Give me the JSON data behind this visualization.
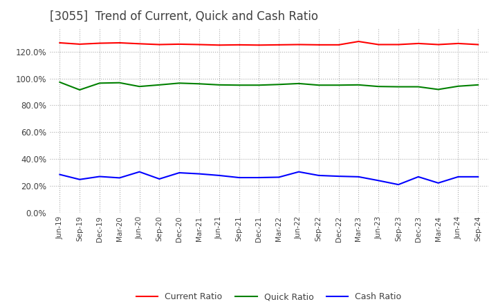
{
  "title": "[3055]  Trend of Current, Quick and Cash Ratio",
  "title_fontsize": 12,
  "title_color": "#404040",
  "background_color": "#ffffff",
  "plot_background_color": "#ffffff",
  "grid_color": "#aaaaaa",
  "x_labels": [
    "Jun-19",
    "Sep-19",
    "Dec-19",
    "Mar-20",
    "Jun-20",
    "Sep-20",
    "Dec-20",
    "Mar-21",
    "Jun-21",
    "Sep-21",
    "Dec-21",
    "Mar-22",
    "Jun-22",
    "Sep-22",
    "Dec-22",
    "Mar-23",
    "Jun-23",
    "Sep-23",
    "Dec-23",
    "Mar-24",
    "Jun-24",
    "Sep-24"
  ],
  "current_ratio": [
    1.265,
    1.255,
    1.262,
    1.265,
    1.258,
    1.252,
    1.255,
    1.252,
    1.248,
    1.25,
    1.248,
    1.25,
    1.252,
    1.25,
    1.25,
    1.275,
    1.252,
    1.252,
    1.26,
    1.252,
    1.26,
    1.252
  ],
  "quick_ratio": [
    0.972,
    0.915,
    0.965,
    0.968,
    0.94,
    0.952,
    0.965,
    0.96,
    0.952,
    0.95,
    0.95,
    0.955,
    0.962,
    0.95,
    0.95,
    0.952,
    0.94,
    0.938,
    0.938,
    0.918,
    0.942,
    0.952
  ],
  "cash_ratio": [
    0.285,
    0.248,
    0.27,
    0.26,
    0.305,
    0.252,
    0.298,
    0.29,
    0.278,
    0.262,
    0.262,
    0.265,
    0.305,
    0.278,
    0.272,
    0.268,
    0.24,
    0.21,
    0.268,
    0.222,
    0.268,
    0.268
  ],
  "current_color": "#ff0000",
  "quick_color": "#008000",
  "cash_color": "#0000ff",
  "legend_labels": [
    "Current Ratio",
    "Quick Ratio",
    "Cash Ratio"
  ],
  "yticks": [
    0.0,
    0.2,
    0.4,
    0.6,
    0.8,
    1.0,
    1.2
  ],
  "ylim": [
    0.0,
    1.38
  ]
}
